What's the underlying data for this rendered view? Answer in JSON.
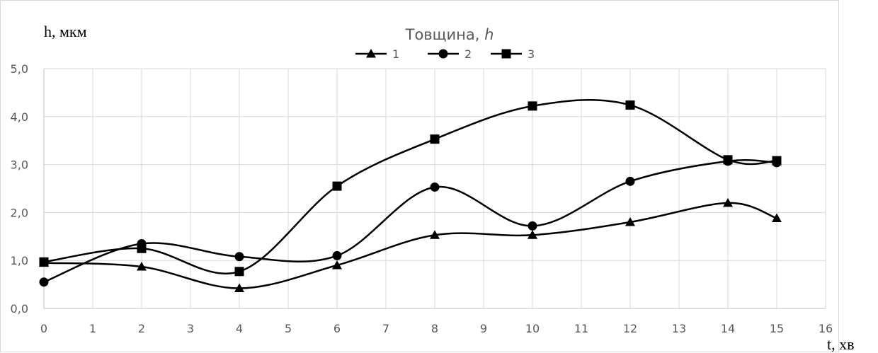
{
  "chart_data": {
    "type": "line",
    "smooth": true,
    "title_main": "Товщина, ",
    "title_var": "h",
    "ylabel": "h, мкм",
    "xlabel": "t, хв",
    "xlim": [
      0,
      16
    ],
    "ylim": [
      0,
      5
    ],
    "x_ticks": [
      0,
      1,
      2,
      3,
      4,
      5,
      6,
      7,
      8,
      9,
      10,
      11,
      12,
      13,
      14,
      15,
      16
    ],
    "y_ticks": [
      "0,0",
      "1,0",
      "2,0",
      "3,0",
      "4,0",
      "5,0"
    ],
    "y_tick_values": [
      0,
      1,
      2,
      3,
      4,
      5
    ],
    "grid": true,
    "legend_position": "top-center",
    "x": [
      0,
      2,
      4,
      6,
      8,
      10,
      12,
      14,
      15
    ],
    "series": [
      {
        "name": "1",
        "marker": "triangle",
        "color": "#000000",
        "values": [
          0.95,
          0.87,
          0.42,
          0.9,
          1.53,
          1.53,
          1.8,
          2.2,
          1.88
        ]
      },
      {
        "name": "2",
        "marker": "circle",
        "color": "#000000",
        "values": [
          0.55,
          1.35,
          1.08,
          1.1,
          2.53,
          1.72,
          2.65,
          3.07,
          3.04
        ]
      },
      {
        "name": "3",
        "marker": "square",
        "color": "#000000",
        "values": [
          0.97,
          1.25,
          0.77,
          2.55,
          3.53,
          4.22,
          4.24,
          3.1,
          3.08
        ]
      }
    ]
  }
}
